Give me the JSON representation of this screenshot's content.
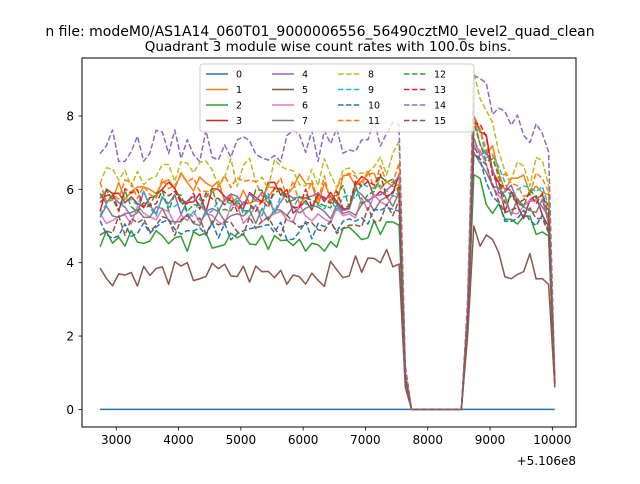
{
  "chart_data": {
    "type": "line",
    "suptitle": "n file: modeM0/AS1A14_060T01_9000006556_56490cztM0_level2_quad_clean",
    "title": "Quadrant 3 module wise count rates with 100.0s bins.",
    "xlabel": "",
    "ylabel": "",
    "x_offset_text": "+5.106e8",
    "xlim": [
      2450,
      10380
    ],
    "ylim": [
      -0.48,
      9.58
    ],
    "xticks": [
      3000,
      4000,
      5000,
      6000,
      7000,
      8000,
      9000,
      10000
    ],
    "yticks": [
      0,
      2,
      4,
      6,
      8
    ],
    "grid": false,
    "legend_position": "upper-center",
    "legend_columns": 4,
    "x_start": 2740,
    "x_step": 100,
    "points_per_series": 74,
    "gap_start": 7740,
    "gap_end": 8640,
    "series": [
      {
        "name": "0",
        "color": "#1f77b4",
        "linestyle": "solid",
        "level": 0.0,
        "amp": 0.0,
        "drop_end": 0.0,
        "resume_start": 0.0,
        "resume_peak": 0.0,
        "tail": 0.0,
        "end_value": 0.0,
        "seed": 1
      },
      {
        "name": "1",
        "color": "#ff7f0e",
        "linestyle": "solid",
        "level": 6.0,
        "amp": 0.45,
        "drop_end": 1.0,
        "resume_start": 2.6,
        "resume_peak": 8.0,
        "tail": 6.1,
        "end_value": 0.75,
        "seed": 2
      },
      {
        "name": "2",
        "color": "#2ca02c",
        "linestyle": "solid",
        "level": 4.6,
        "amp": 0.3,
        "drop_end": 0.8,
        "resume_start": 2.2,
        "resume_peak": 6.4,
        "tail": 5.0,
        "end_value": 0.65,
        "seed": 3
      },
      {
        "name": "3",
        "color": "#d62728",
        "linestyle": "solid",
        "level": 5.8,
        "amp": 0.45,
        "drop_end": 0.9,
        "resume_start": 2.5,
        "resume_peak": 8.0,
        "tail": 5.6,
        "end_value": 0.7,
        "seed": 4
      },
      {
        "name": "4",
        "color": "#9467bd",
        "linestyle": "solid",
        "level": 5.6,
        "amp": 0.35,
        "drop_end": 0.9,
        "resume_start": 2.4,
        "resume_peak": 7.4,
        "tail": 5.8,
        "end_value": 0.7,
        "seed": 5
      },
      {
        "name": "5",
        "color": "#8c564b",
        "linestyle": "solid",
        "level": 3.7,
        "amp": 0.35,
        "drop_end": 0.6,
        "resume_start": 2.0,
        "resume_peak": 5.0,
        "tail": 3.9,
        "end_value": 0.6,
        "seed": 6
      },
      {
        "name": "6",
        "color": "#e377c2",
        "linestyle": "solid",
        "level": 5.3,
        "amp": 0.3,
        "drop_end": 0.8,
        "resume_start": 2.4,
        "resume_peak": 7.2,
        "tail": 5.6,
        "end_value": 0.7,
        "seed": 7
      },
      {
        "name": "7",
        "color": "#7f7f7f",
        "linestyle": "solid",
        "level": 5.3,
        "amp": 0.3,
        "drop_end": 0.8,
        "resume_start": 2.3,
        "resume_peak": 7.0,
        "tail": 5.5,
        "end_value": 0.7,
        "seed": 8
      },
      {
        "name": "8",
        "color": "#bcbd22",
        "linestyle": "dashed",
        "level": 6.4,
        "amp": 0.45,
        "drop_end": 1.0,
        "resume_start": 2.8,
        "resume_peak": 9.2,
        "tail": 6.5,
        "end_value": 0.8,
        "seed": 9
      },
      {
        "name": "9",
        "color": "#17becf",
        "linestyle": "dashed",
        "level": 5.6,
        "amp": 0.35,
        "drop_end": 0.9,
        "resume_start": 2.4,
        "resume_peak": 7.6,
        "tail": 5.9,
        "end_value": 0.7,
        "seed": 10
      },
      {
        "name": "10",
        "color": "#1f77b4",
        "linestyle": "dashed",
        "level": 4.9,
        "amp": 0.3,
        "drop_end": 0.8,
        "resume_start": 2.3,
        "resume_peak": 7.0,
        "tail": 5.2,
        "end_value": 0.7,
        "seed": 11
      },
      {
        "name": "11",
        "color": "#ff7f0e",
        "linestyle": "dashed",
        "level": 6.0,
        "amp": 0.4,
        "drop_end": 1.0,
        "resume_start": 2.6,
        "resume_peak": 8.0,
        "tail": 6.2,
        "end_value": 0.75,
        "seed": 12
      },
      {
        "name": "12",
        "color": "#2ca02c",
        "linestyle": "dashed",
        "level": 5.7,
        "amp": 0.35,
        "drop_end": 0.9,
        "resume_start": 2.4,
        "resume_peak": 7.8,
        "tail": 5.8,
        "end_value": 0.7,
        "seed": 13
      },
      {
        "name": "13",
        "color": "#d62728",
        "linestyle": "dashed",
        "level": 5.7,
        "amp": 0.35,
        "drop_end": 0.9,
        "resume_start": 2.4,
        "resume_peak": 7.8,
        "tail": 5.9,
        "end_value": 0.7,
        "seed": 14
      },
      {
        "name": "14",
        "color": "#9467bd",
        "linestyle": "dashed",
        "level": 7.2,
        "amp": 0.45,
        "drop_end": 1.2,
        "resume_start": 3.0,
        "resume_peak": 9.1,
        "tail": 7.6,
        "end_value": 0.85,
        "seed": 15
      },
      {
        "name": "15",
        "color": "#8c564b",
        "linestyle": "dashed",
        "level": 5.0,
        "amp": 0.3,
        "drop_end": 0.8,
        "resume_start": 2.3,
        "resume_peak": 7.2,
        "tail": 5.3,
        "end_value": 0.7,
        "seed": 16
      }
    ]
  }
}
